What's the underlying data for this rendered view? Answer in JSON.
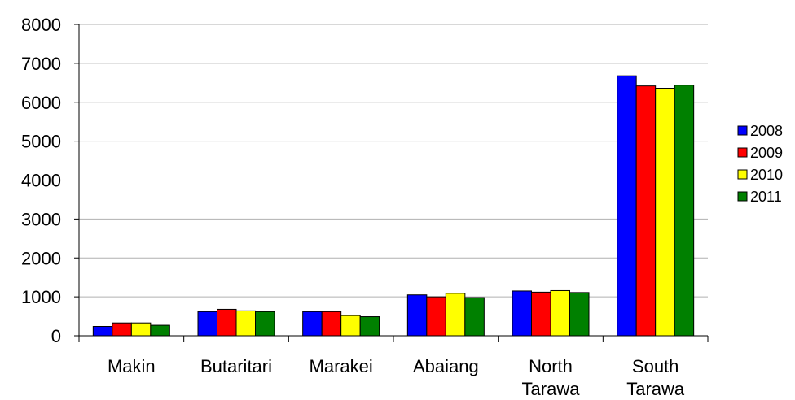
{
  "chart_data": {
    "type": "bar",
    "categories": [
      [
        "Makin"
      ],
      [
        "Butaritari"
      ],
      [
        "Marakei"
      ],
      [
        "Abaiang"
      ],
      [
        "North",
        "Tarawa"
      ],
      [
        "South",
        "Tarawa"
      ]
    ],
    "series": [
      {
        "name": "2008",
        "color": "#0000ff",
        "values": [
          240,
          620,
          620,
          1050,
          1150,
          6680
        ]
      },
      {
        "name": "2009",
        "color": "#ff0000",
        "values": [
          330,
          680,
          620,
          1000,
          1120,
          6420
        ]
      },
      {
        "name": "2010",
        "color": "#ffff00",
        "values": [
          330,
          640,
          520,
          1090,
          1160,
          6360
        ]
      },
      {
        "name": "2011",
        "color": "#008000",
        "values": [
          270,
          620,
          490,
          980,
          1110,
          6440
        ]
      }
    ],
    "ylim": [
      0,
      8000
    ],
    "yticks": [
      0,
      1000,
      2000,
      3000,
      4000,
      5000,
      6000,
      7000,
      8000
    ],
    "grid": true,
    "legend_position": "right",
    "title": "",
    "xlabel": "",
    "ylabel": ""
  }
}
